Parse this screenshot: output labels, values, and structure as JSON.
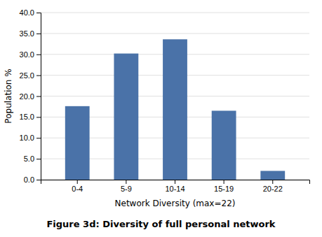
{
  "chart_data": {
    "type": "bar",
    "title": "Figure 3d: Diversity of full personal network",
    "xlabel": "Network Diversity (max=22)",
    "ylabel": "Population %",
    "categories": [
      "0-4",
      "5-9",
      "10-14",
      "15-19",
      "20-22"
    ],
    "values": [
      17.6,
      30.2,
      33.6,
      16.5,
      2.1
    ],
    "color": "#4a72a8",
    "ylim": [
      0,
      40.0
    ],
    "yticks": [
      {
        "value": 0.0,
        "label": "0.0"
      },
      {
        "value": 5.0,
        "label": "5.0"
      },
      {
        "value": 10.0,
        "label": "10.0"
      },
      {
        "value": 15.0,
        "label": "15.0"
      },
      {
        "value": 20.0,
        "label": "20.0"
      },
      {
        "value": 25.0,
        "label": "25.0"
      },
      {
        "value": 30.0,
        "label": "30.0"
      },
      {
        "value": 35.0,
        "label": "35.0"
      },
      {
        "value": 40.0,
        "label": "40.0"
      }
    ],
    "grid": true
  }
}
